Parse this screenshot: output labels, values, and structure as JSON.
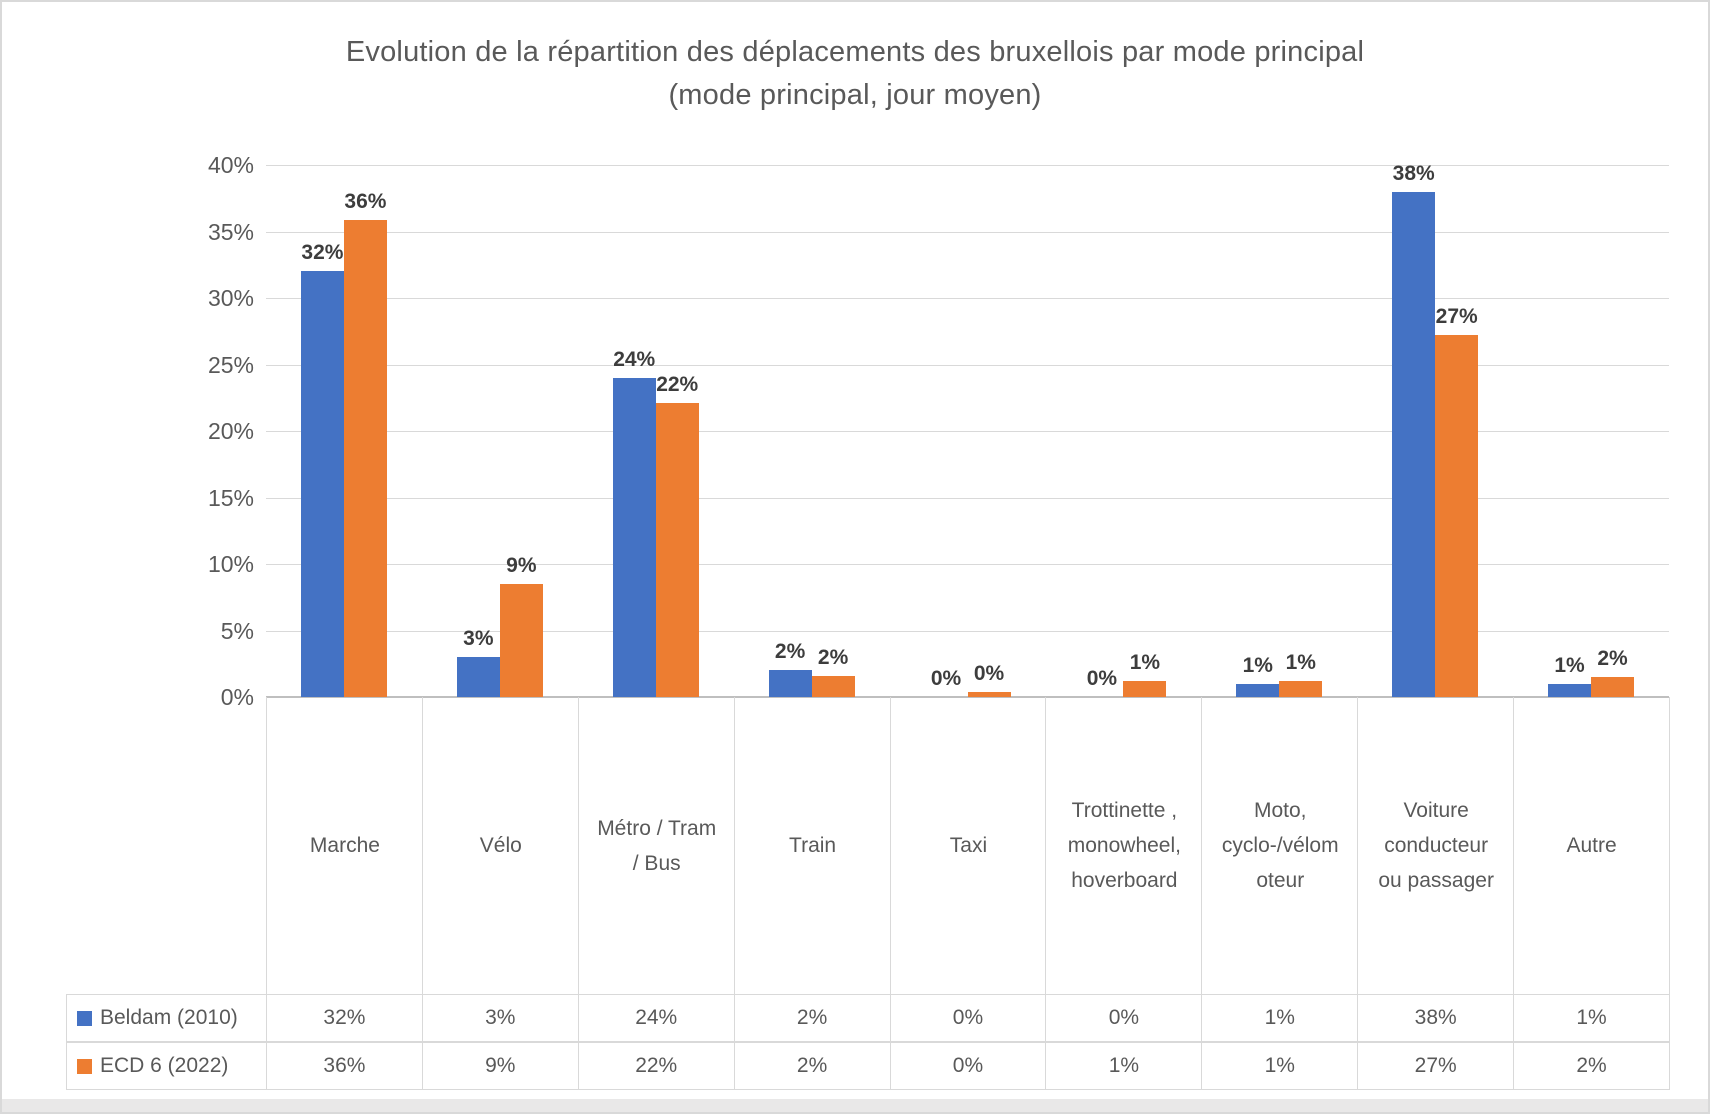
{
  "frame": {
    "background": "#ffffff",
    "border_color": "#d9d9d9",
    "bottom_strip_color": "#e9e8e8"
  },
  "chart_data": {
    "type": "bar",
    "title": "Evolution de la répartition des déplacements des bruxellois par mode principal (mode principal, jour moyen)",
    "title_lines": [
      "Evolution de la répartition des déplacements des bruxellois par mode principal",
      "(mode principal, jour moyen)"
    ],
    "categories": [
      "Marche",
      "Vélo",
      "Métro / Tram / Bus",
      "Train",
      "Taxi",
      "Trottinette , monowheel, hoverboard",
      "Moto, cyclo-/vélomoteur",
      "Voiture conducteur ou passager",
      "Autre"
    ],
    "series": [
      {
        "name": "Beldam (2010)",
        "color": "#4472C4",
        "values": [
          32,
          3,
          24,
          2,
          0,
          0,
          1,
          38,
          1
        ],
        "labels": [
          "32%",
          "3%",
          "24%",
          "2%",
          "0%",
          "0%",
          "1%",
          "38%",
          "1%"
        ],
        "bar_heights_pct": [
          32,
          3,
          24,
          2,
          0,
          0,
          1,
          38,
          1
        ]
      },
      {
        "name": "ECD 6 (2022)",
        "color": "#ED7D31",
        "values": [
          36,
          9,
          22,
          2,
          0,
          1,
          1,
          27,
          2
        ],
        "labels": [
          "36%",
          "9%",
          "22%",
          "2%",
          "0%",
          "1%",
          "1%",
          "27%",
          "2%"
        ],
        "bar_heights_pct": [
          35.9,
          8.5,
          22.1,
          1.6,
          0.4,
          1.2,
          1.2,
          27.2,
          1.5
        ]
      }
    ],
    "y_axis": {
      "min": 0,
      "max": 40,
      "step": 5,
      "tick_labels": [
        "0%",
        "5%",
        "10%",
        "15%",
        "20%",
        "25%",
        "30%",
        "35%",
        "40%"
      ]
    },
    "grid": true,
    "legend_position": "data-table-left",
    "data_table": true,
    "text_color": "#595959",
    "label_color": "#3d3d3d",
    "gridline_color": "#d9d9d9"
  }
}
